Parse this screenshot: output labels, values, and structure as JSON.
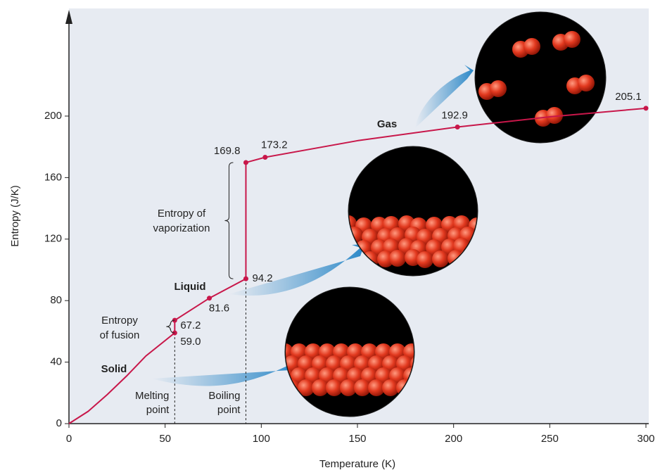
{
  "chart_data": {
    "type": "line",
    "x_label": "Temperature (K)",
    "y_label": "Entropy (J/K)",
    "xlim": [
      0,
      300
    ],
    "ylim": [
      0,
      270
    ],
    "xticks": [
      0,
      50,
      100,
      150,
      200,
      250,
      300
    ],
    "yticks": [
      0,
      40,
      80,
      120,
      160,
      200
    ],
    "series": [
      {
        "color": "#c8174a",
        "x": [
          0,
          10,
          20,
          30,
          40,
          55,
          55,
          73,
          92,
          92,
          102,
          150,
          202,
          250,
          300
        ],
        "values": [
          0,
          8,
          19,
          31,
          44,
          59.0,
          67.2,
          81.6,
          94.2,
          169.8,
          173.2,
          184,
          192.9,
          199.5,
          205.1
        ],
        "value_labels": [
          null,
          null,
          null,
          null,
          null,
          "59.0",
          "67.2",
          "81.6",
          "94.2",
          "169.8",
          "173.2",
          null,
          "192.9",
          null,
          "205.1"
        ]
      }
    ],
    "phases": [
      "Solid",
      "Liquid",
      "Gas"
    ],
    "brackets": [
      [
        "Entropy",
        "of fusion"
      ],
      [
        "Entropy of",
        "vaporization"
      ]
    ],
    "transitions": [
      [
        "Melting",
        "point"
      ],
      [
        "Boiling",
        "point"
      ]
    ]
  }
}
